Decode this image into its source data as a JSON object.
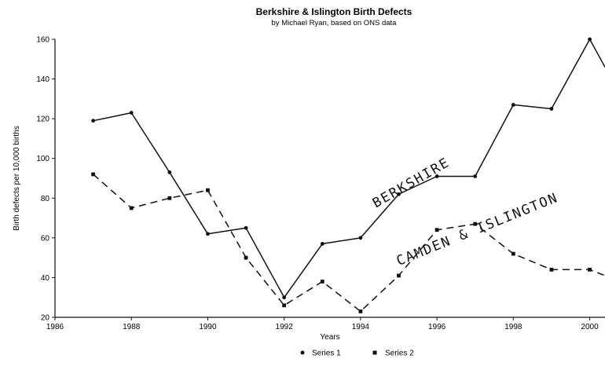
{
  "chart_data": {
    "type": "line",
    "title": "Berkshire & Islington Birth Defects",
    "subtitle": "by Michael Ryan, based on ONS data",
    "xlabel": "Years",
    "ylabel": "Birth defects per 10,000 births",
    "xlim": [
      1986,
      2000.4
    ],
    "ylim": [
      20,
      160
    ],
    "x_ticks": [
      1986,
      1988,
      1990,
      1992,
      1994,
      1996,
      1998,
      2000
    ],
    "y_ticks": [
      20,
      40,
      60,
      80,
      100,
      120,
      140,
      160
    ],
    "y_tick_labels": [
      "20",
      "40",
      "60",
      "80",
      "100",
      "120",
      "140",
      "160"
    ],
    "grid": false,
    "legend_position": "bottom",
    "series": [
      {
        "name": "Series 1",
        "style": "solid",
        "marker": "circle",
        "color": "#111111",
        "x": [
          1987,
          1988,
          1989,
          1990,
          1991,
          1992,
          1993,
          1994,
          1995,
          1996,
          1997,
          1998,
          1999,
          2000,
          2000.4
        ],
        "y": [
          119,
          123,
          93,
          62,
          65,
          30,
          57,
          60,
          82,
          91,
          91,
          127,
          125,
          160,
          146
        ]
      },
      {
        "name": "Series 2",
        "style": "dashed",
        "marker": "square",
        "color": "#111111",
        "x": [
          1987,
          1988,
          1989,
          1990,
          1991,
          1992,
          1993,
          1994,
          1995,
          1996,
          1997,
          1998,
          1999,
          2000,
          2000.4
        ],
        "y": [
          92,
          75,
          80,
          84,
          50,
          26,
          38,
          23,
          41,
          64,
          67,
          52,
          44,
          44,
          41
        ]
      }
    ],
    "annotations": [
      {
        "text": "BERKSHIRE",
        "x": 1994.4,
        "y": 75
      },
      {
        "text": "CAMDEN & ISLINGTON",
        "x": 1995.0,
        "y": 46
      }
    ]
  }
}
